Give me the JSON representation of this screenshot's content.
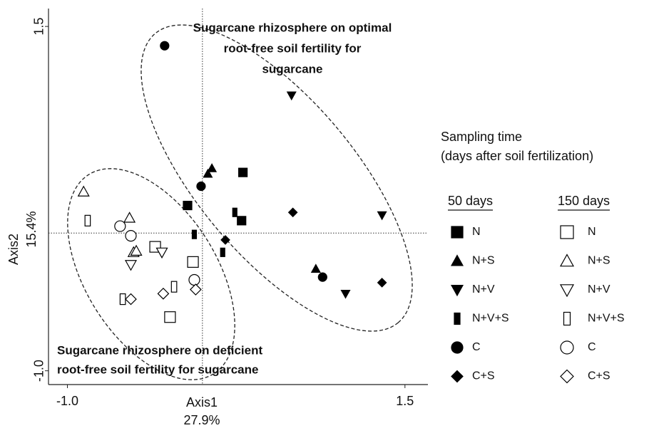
{
  "chart_data": {
    "type": "scatter",
    "xlabel": "Axis1",
    "xlabel2": "27.9%",
    "ylabel": "Axis2",
    "ylabel2": "15.4%",
    "xlim": [
      -1.14,
      1.67
    ],
    "ylim": [
      -1.1,
      1.63
    ],
    "xticks": [
      {
        "value": -1,
        "label": "-1.0"
      },
      1.5
    ],
    "yticks": [
      {
        "value": -1,
        "label": "-1.0"
      },
      1.5
    ],
    "legend_title": [
      "Sampling time",
      "(days after soil fertilization)"
    ],
    "annotations": [
      [
        "Sugarcane rhizosphere on optimal",
        "root-free soil fertility for",
        "sugarcane"
      ],
      [
        "Sugarcane rhizosphere on deficient",
        "root-free soil fertility for sugarcane"
      ]
    ],
    "groups": [
      {
        "name": "50 days",
        "color": "#000000",
        "filled": true,
        "series": [
          {
            "name": "N",
            "marker": "square",
            "x": [
              0.3,
              -0.11,
              0.29
            ],
            "y": [
              0.44,
              0.2,
              0.09
            ]
          },
          {
            "name": "N+S",
            "marker": "triangle-up",
            "x": [
              0.04,
              0.07,
              0.84
            ],
            "y": [
              0.43,
              0.47,
              -0.26
            ]
          },
          {
            "name": "N+V",
            "marker": "triangle-down",
            "x": [
              0.66,
              1.33,
              1.06
            ],
            "y": [
              1.0,
              0.13,
              -0.44
            ]
          },
          {
            "name": "N+V+S",
            "marker": "rect",
            "x": [
              -0.06,
              0.15,
              0.24
            ],
            "y": [
              -0.01,
              -0.14,
              0.15
            ]
          },
          {
            "name": "C",
            "marker": "circle",
            "x": [
              -0.28,
              -0.01,
              0.89
            ],
            "y": [
              1.36,
              0.34,
              -0.32
            ]
          },
          {
            "name": "C+S",
            "marker": "diamond",
            "x": [
              0.17,
              0.67,
              1.33
            ],
            "y": [
              -0.05,
              0.15,
              -0.36
            ]
          }
        ]
      },
      {
        "name": "150 days",
        "color": "#000000",
        "filled": false,
        "series": [
          {
            "name": "N",
            "marker": "square",
            "x": [
              -0.35,
              -0.07,
              -0.24
            ],
            "y": [
              -0.1,
              -0.21,
              -0.61
            ]
          },
          {
            "name": "N+S",
            "marker": "triangle-up",
            "x": [
              -0.88,
              -0.54,
              -0.51,
              -0.49
            ],
            "y": [
              0.3,
              0.11,
              -0.14,
              -0.13
            ]
          },
          {
            "name": "N+V",
            "marker": "triangle-down",
            "x": [
              -0.53,
              -0.3
            ],
            "y": [
              -0.23,
              -0.14
            ]
          },
          {
            "name": "N+V+S",
            "marker": "rect",
            "x": [
              -0.85,
              -0.21,
              -0.59
            ],
            "y": [
              0.09,
              -0.39,
              -0.48
            ]
          },
          {
            "name": "C",
            "marker": "circle",
            "x": [
              -0.61,
              -0.53,
              -0.06
            ],
            "y": [
              0.05,
              -0.02,
              -0.34
            ]
          },
          {
            "name": "C+S",
            "marker": "diamond",
            "x": [
              -0.53,
              -0.29,
              -0.05
            ],
            "y": [
              -0.48,
              -0.44,
              -0.41
            ]
          }
        ]
      }
    ]
  }
}
